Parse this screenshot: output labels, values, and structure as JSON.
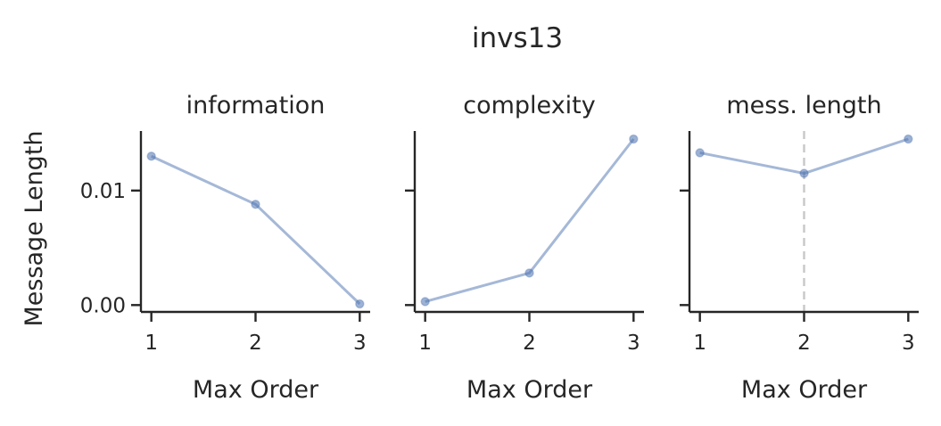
{
  "title": "invs13",
  "chart_data": [
    {
      "type": "line",
      "title": "information",
      "xlabel": "Max Order",
      "ylabel": "Message Length",
      "x": [
        1,
        2,
        3
      ],
      "y": [
        0.013,
        0.0088,
        0.0001
      ],
      "xlim": [
        0.9,
        3.1
      ],
      "ylim": [
        -0.0006,
        0.0152
      ],
      "xticks": [
        "1",
        "2",
        "3"
      ],
      "yticks": [
        "0.00",
        "0.01"
      ],
      "ytick_values": [
        0.0,
        0.01
      ],
      "color": "#4c72b0"
    },
    {
      "type": "line",
      "title": "complexity",
      "xlabel": "Max Order",
      "ylabel": "",
      "x": [
        1,
        2,
        3
      ],
      "y": [
        0.0003,
        0.0028,
        0.0145
      ],
      "xlim": [
        0.9,
        3.1
      ],
      "ylim": [
        -0.0006,
        0.0152
      ],
      "xticks": [
        "1",
        "2",
        "3"
      ],
      "yticks": [
        "",
        ""
      ],
      "ytick_values": [
        0.0,
        0.01
      ],
      "color": "#4c72b0"
    },
    {
      "type": "line",
      "title": "mess. length",
      "xlabel": "Max Order",
      "ylabel": "",
      "x": [
        1,
        2,
        3
      ],
      "y": [
        0.0133,
        0.0115,
        0.0145
      ],
      "xlim": [
        0.9,
        3.1
      ],
      "ylim": [
        -0.0006,
        0.0152
      ],
      "xticks": [
        "1",
        "2",
        "3"
      ],
      "yticks": [
        "",
        ""
      ],
      "ytick_values": [
        0.0,
        0.01
      ],
      "vline_x": 2,
      "vline_color": "#c8c8c8",
      "color": "#4c72b0"
    }
  ]
}
